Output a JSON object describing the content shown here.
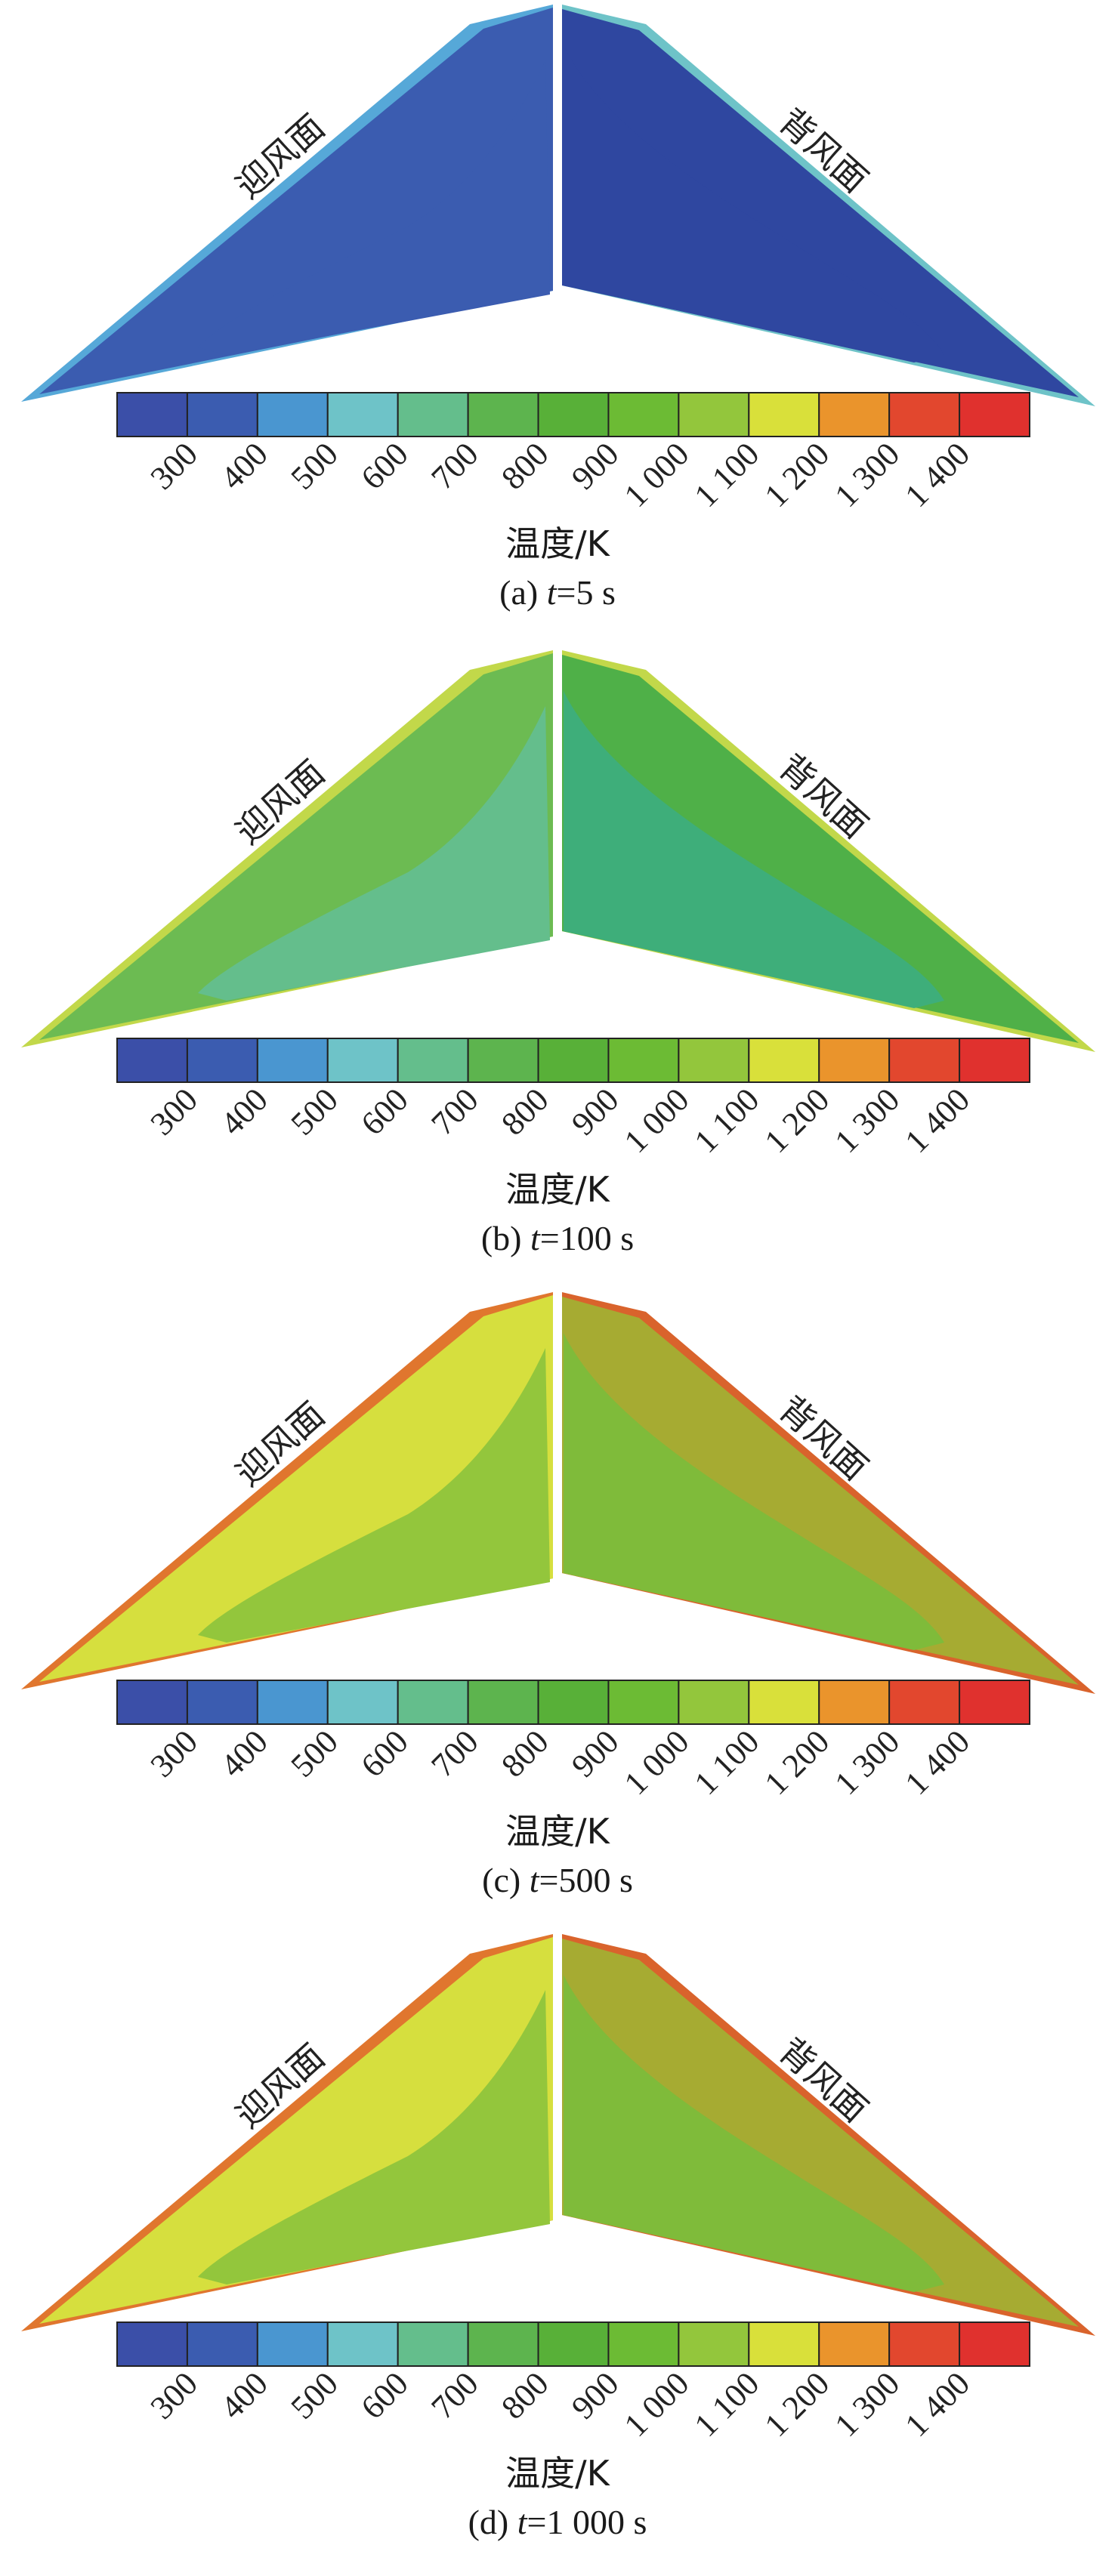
{
  "colorbar": {
    "colors": [
      "#3b4fa8",
      "#3b5cb0",
      "#4a96d0",
      "#6ec3c8",
      "#64be8c",
      "#5db44e",
      "#58b038",
      "#6cbb34",
      "#93c63c",
      "#d9e03a",
      "#ea942c",
      "#e2472e",
      "#e0312e"
    ],
    "ticks": [
      "300",
      "400",
      "500",
      "600",
      "700",
      "800",
      "900",
      "1 000",
      "1 100",
      "1 200",
      "1 300",
      "1 400"
    ],
    "title": "温度/K"
  },
  "labels": {
    "windward": "迎风面",
    "leeward": "背风面"
  },
  "panels": [
    {
      "id": "a",
      "caption_prefix": "(a) ",
      "caption_var": "t",
      "caption_rest": "=5 s",
      "time": "5 s",
      "windward_colors": {
        "base": "#3b5cb0",
        "edge": "#56a8d8",
        "inner": "#3b5cb0"
      },
      "leeward_colors": {
        "base": "#2f47a0",
        "edge": "#6ec3c8",
        "inner": "#2f47a0"
      }
    },
    {
      "id": "b",
      "caption_prefix": "(b) ",
      "caption_var": "t",
      "caption_rest": "=100 s",
      "time": "100 s",
      "windward_colors": {
        "base": "#6cbb52",
        "edge": "#c2d84a",
        "inner": "#64be8c"
      },
      "leeward_colors": {
        "base": "#4fb048",
        "edge": "#c2d84a",
        "inner": "#3eae7a"
      }
    },
    {
      "id": "c",
      "caption_prefix": "(c) ",
      "caption_var": "t",
      "caption_rest": "=500 s",
      "time": "500 s",
      "windward_colors": {
        "base": "#d6df3e",
        "edge": "#e0762e",
        "inner": "#93c63c"
      },
      "leeward_colors": {
        "base": "#a6ab32",
        "edge": "#d9632c",
        "inner": "#7fbb3a"
      }
    },
    {
      "id": "d",
      "caption_prefix": "(d) ",
      "caption_var": "t",
      "caption_rest": "=1 000 s",
      "time": "1 000 s",
      "windward_colors": {
        "base": "#d6df3e",
        "edge": "#e0762e",
        "inner": "#93c63c"
      },
      "leeward_colors": {
        "base": "#a6ab32",
        "edge": "#d9632c",
        "inner": "#7fbb3a"
      }
    }
  ]
}
